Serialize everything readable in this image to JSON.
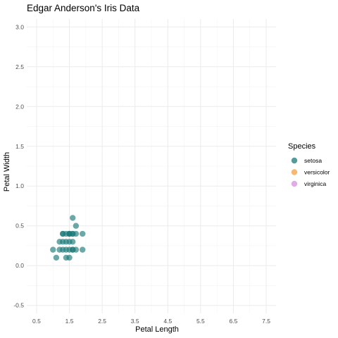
{
  "chart_data": {
    "type": "scatter",
    "title": "Edgar Anderson's Iris Data",
    "xlabel": "Petal Length",
    "ylabel": "Petal Width",
    "xlim": [
      0.2,
      7.8
    ],
    "ylim": [
      -0.6,
      3.1
    ],
    "xticks": [
      0.5,
      1.5,
      2.5,
      3.5,
      4.5,
      5.5,
      6.5,
      7.5
    ],
    "xtick_labels": [
      "0.5",
      "1.5",
      "2.5",
      "3.5",
      "4.5",
      "5.5",
      "6.5",
      "7.5"
    ],
    "yticks": [
      -0.5,
      0.0,
      0.5,
      1.0,
      1.5,
      2.0,
      2.5,
      3.0
    ],
    "ytick_labels": [
      "-0.5",
      "0.0",
      "0.5",
      "1.0",
      "1.5",
      "2.0",
      "2.5",
      "3.0"
    ],
    "grid": true,
    "legend": {
      "title": "Species",
      "position": "right"
    },
    "series": [
      {
        "name": "setosa",
        "color": "#1b7a7a",
        "x": [
          1.0,
          1.1,
          1.2,
          1.3,
          1.4,
          1.5,
          1.6,
          1.7,
          1.9,
          1.2,
          1.3,
          1.4,
          1.5,
          1.6,
          1.3,
          1.4,
          1.5,
          1.6,
          1.3,
          1.5,
          1.6,
          1.7,
          1.9,
          1.6,
          1.7,
          1.4,
          1.5,
          1.5,
          1.6
        ],
        "y": [
          0.2,
          0.1,
          0.2,
          0.2,
          0.2,
          0.2,
          0.2,
          0.2,
          0.2,
          0.3,
          0.3,
          0.3,
          0.3,
          0.3,
          0.4,
          0.4,
          0.4,
          0.4,
          0.4,
          0.4,
          0.4,
          0.4,
          0.4,
          0.6,
          0.5,
          0.1,
          0.1,
          0.4,
          0.2
        ]
      },
      {
        "name": "versicolor",
        "color": "#f5a040",
        "x": [],
        "y": []
      },
      {
        "name": "virginica",
        "color": "#d98ee0",
        "x": [],
        "y": []
      }
    ]
  }
}
